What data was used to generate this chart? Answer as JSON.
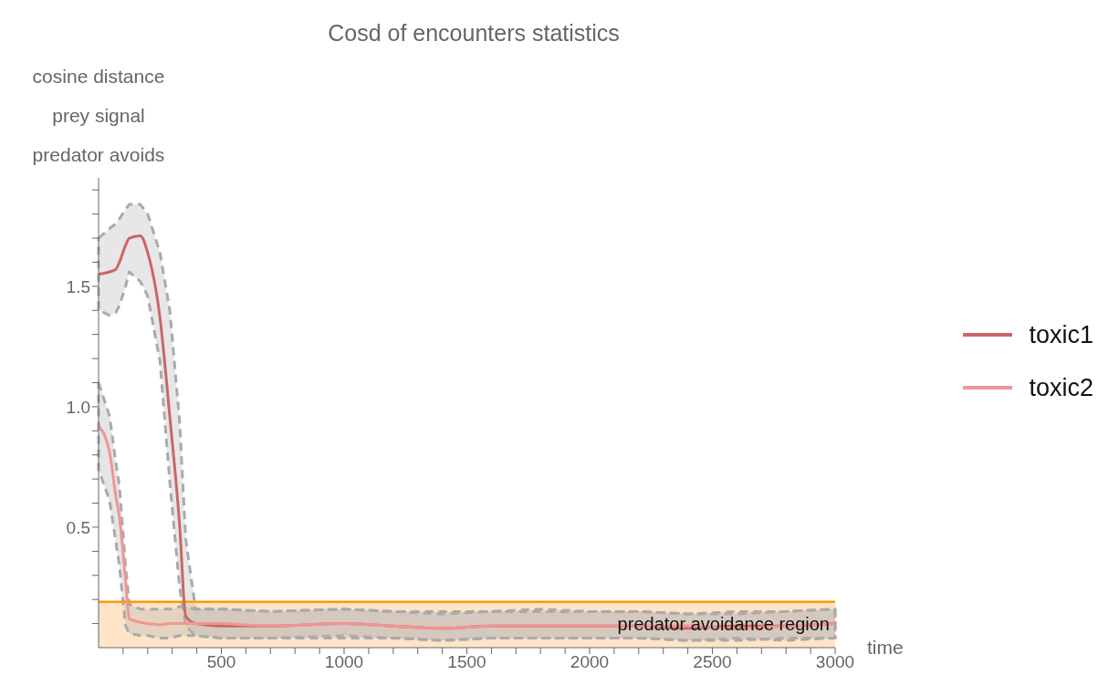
{
  "chart_data": {
    "type": "line",
    "title": "Cosd of encounters statistics",
    "ylabel": "cosine distance\nprey signal\npredator avoids",
    "xlabel": "time",
    "x": [
      0,
      45,
      70,
      85,
      110,
      125,
      170,
      200,
      250,
      290,
      330,
      355,
      395,
      500,
      700,
      1000,
      1200,
      1400,
      1600,
      1800,
      2000,
      2200,
      2400,
      2600,
      2800,
      3000
    ],
    "xlim": [
      0,
      3000
    ],
    "xticks": [
      {
        "value": 100,
        "label": null
      },
      {
        "value": 200,
        "label": null
      },
      {
        "value": 300,
        "label": null
      },
      {
        "value": 400,
        "label": null
      },
      500,
      {
        "value": 600,
        "label": null
      },
      {
        "value": 700,
        "label": null
      },
      {
        "value": 800,
        "label": null
      },
      {
        "value": 900,
        "label": null
      },
      1000,
      {
        "value": 1100,
        "label": null
      },
      {
        "value": 1200,
        "label": null
      },
      {
        "value": 1300,
        "label": null
      },
      {
        "value": 1400,
        "label": null
      },
      1500,
      {
        "value": 1600,
        "label": null
      },
      {
        "value": 1700,
        "label": null
      },
      {
        "value": 1800,
        "label": null
      },
      {
        "value": 1900,
        "label": null
      },
      2000,
      {
        "value": 2100,
        "label": null
      },
      {
        "value": 2200,
        "label": null
      },
      {
        "value": 2300,
        "label": null
      },
      {
        "value": 2400,
        "label": null
      },
      2500,
      {
        "value": 2600,
        "label": null
      },
      {
        "value": 2700,
        "label": null
      },
      {
        "value": 2800,
        "label": null
      },
      {
        "value": 2900,
        "label": null
      },
      3000
    ],
    "ylim": [
      0,
      1.95
    ],
    "yticks": [
      {
        "value": 0.1,
        "label": null
      },
      {
        "value": 0.2,
        "label": null
      },
      {
        "value": 0.3,
        "label": null
      },
      {
        "value": 0.4,
        "label": null
      },
      {
        "value": 0.5,
        "label": "0.5"
      },
      {
        "value": 0.6,
        "label": null
      },
      {
        "value": 0.7,
        "label": null
      },
      {
        "value": 0.8,
        "label": null
      },
      {
        "value": 0.9,
        "label": null
      },
      {
        "value": 1.0,
        "label": "1.0"
      },
      {
        "value": 1.1,
        "label": null
      },
      {
        "value": 1.2,
        "label": null
      },
      {
        "value": 1.3,
        "label": null
      },
      {
        "value": 1.4,
        "label": null
      },
      {
        "value": 1.5,
        "label": "1.5"
      },
      {
        "value": 1.6,
        "label": null
      },
      {
        "value": 1.7,
        "label": null
      },
      {
        "value": 1.8,
        "label": null
      },
      {
        "value": 1.9,
        "label": null
      }
    ],
    "grid": false,
    "legend": "right",
    "series": [
      {
        "name": "toxic1",
        "color": "#cc6666",
        "values": [
          1.55,
          1.56,
          1.57,
          1.6,
          1.67,
          1.7,
          1.71,
          1.64,
          1.37,
          0.96,
          0.51,
          0.13,
          0.1,
          0.09,
          0.09,
          0.1,
          0.09,
          0.08,
          0.09,
          0.09,
          0.09,
          0.09,
          0.08,
          0.09,
          0.09,
          0.1
        ],
        "upper": [
          1.7,
          1.74,
          1.76,
          1.78,
          1.82,
          1.84,
          1.84,
          1.8,
          1.64,
          1.4,
          0.94,
          0.45,
          0.16,
          0.16,
          0.15,
          0.16,
          0.15,
          0.15,
          0.15,
          0.16,
          0.15,
          0.15,
          0.14,
          0.15,
          0.15,
          0.16
        ],
        "lower": [
          1.4,
          1.38,
          1.39,
          1.42,
          1.5,
          1.56,
          1.52,
          1.46,
          1.19,
          0.69,
          0.25,
          0.09,
          0.05,
          0.04,
          0.04,
          0.05,
          0.04,
          0.03,
          0.04,
          0.04,
          0.04,
          0.04,
          0.03,
          0.04,
          0.03,
          0.04
        ]
      },
      {
        "name": "toxic2",
        "color": "#f09595",
        "values": [
          0.92,
          0.81,
          0.63,
          0.54,
          0.28,
          0.12,
          0.105,
          0.1,
          0.095,
          0.1,
          0.1,
          0.1,
          0.1,
          0.1,
          0.09,
          0.1,
          0.09,
          0.08,
          0.09,
          0.09,
          0.09,
          0.09,
          0.09,
          0.08,
          0.09,
          0.1
        ],
        "upper": [
          1.1,
          0.96,
          0.77,
          0.67,
          0.34,
          0.18,
          0.16,
          0.16,
          0.16,
          0.16,
          0.17,
          0.17,
          0.16,
          0.16,
          0.15,
          0.16,
          0.15,
          0.14,
          0.15,
          0.15,
          0.15,
          0.15,
          0.14,
          0.14,
          0.15,
          0.16
        ],
        "lower": [
          0.74,
          0.61,
          0.44,
          0.34,
          0.09,
          0.06,
          0.05,
          0.05,
          0.04,
          0.04,
          0.05,
          0.05,
          0.05,
          0.04,
          0.04,
          0.04,
          0.04,
          0.03,
          0.04,
          0.04,
          0.04,
          0.04,
          0.03,
          0.03,
          0.04,
          0.04
        ]
      }
    ],
    "ref_lines": [
      {
        "axis": "y",
        "value": 0.19,
        "color": "#ff9900"
      }
    ],
    "bands": [
      {
        "axis": "y",
        "from": 0,
        "to": 0.19,
        "label": "predator avoidance region",
        "color": "#ffe4c8"
      }
    ]
  }
}
